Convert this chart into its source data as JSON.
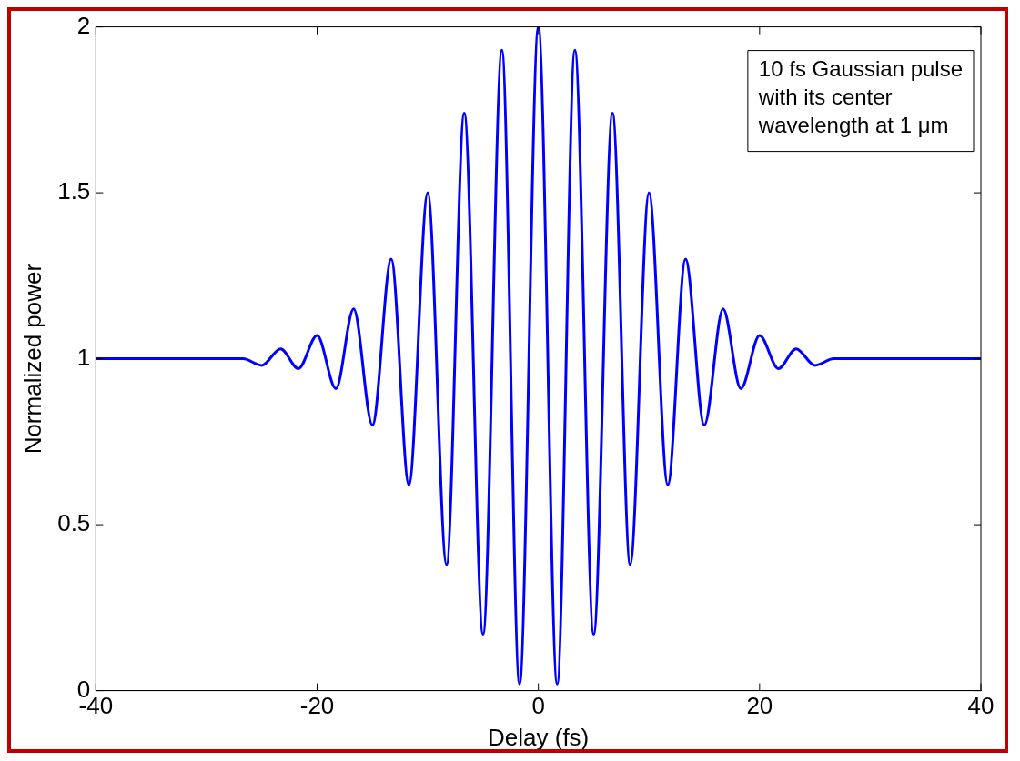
{
  "chart_data": {
    "type": "line",
    "xlabel": "Delay (fs)",
    "ylabel": "Normalized power",
    "annotations": [
      "10 fs Gaussian pulse\nwith its center\nwavelength at 1 μm"
    ],
    "xlim": [
      -40,
      40
    ],
    "ylim": [
      0,
      2
    ],
    "xticks": [
      -40,
      -20,
      0,
      20,
      40
    ],
    "yticks": [
      0,
      0.5,
      1,
      1.5,
      2
    ],
    "grid": false,
    "legend": false,
    "marker": "none",
    "line_style": "solid",
    "series": [
      {
        "color": "#0000ff",
        "x": [
          -40,
          -30,
          -28,
          -26.7,
          -25,
          -23.3,
          -21.7,
          -20,
          -18.3,
          -16.7,
          -15,
          -13.3,
          -11.7,
          -10,
          -8.3,
          -6.7,
          -5,
          -3.3,
          -1.7,
          0,
          1.7,
          3.3,
          5,
          6.7,
          8.3,
          10,
          11.7,
          13.3,
          15,
          16.7,
          18.3,
          20,
          21.7,
          23.3,
          25,
          26.7,
          28,
          30,
          40
        ],
        "values": [
          1,
          1,
          1,
          1,
          0.98,
          1.03,
          0.97,
          1.07,
          0.91,
          1.15,
          0.8,
          1.3,
          0.62,
          1.5,
          0.38,
          1.74,
          0.17,
          1.93,
          0.02,
          2,
          0.02,
          1.93,
          0.17,
          1.74,
          0.38,
          1.5,
          0.62,
          1.3,
          0.8,
          1.15,
          0.91,
          1.07,
          0.97,
          1.03,
          0.98,
          1,
          1,
          1,
          1
        ]
      }
    ]
  }
}
